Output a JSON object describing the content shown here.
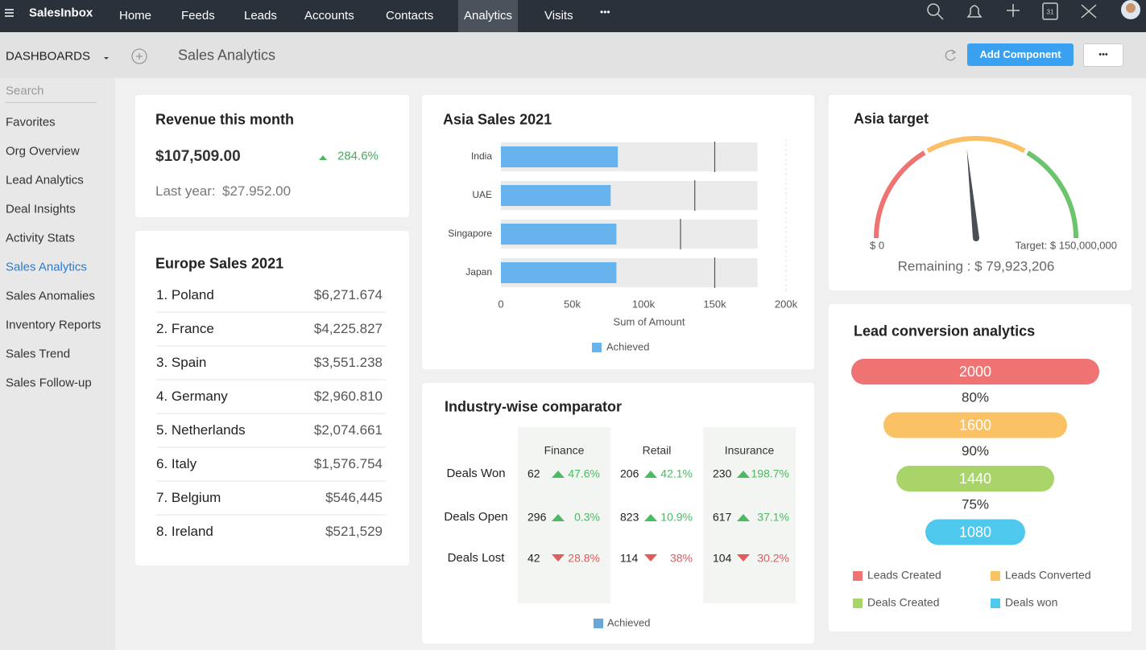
{
  "nav": {
    "brand": "SalesInbox",
    "items": [
      "Home",
      "Feeds",
      "Leads",
      "Accounts",
      "Contacts",
      "Analytics",
      "Visits"
    ],
    "active": 5,
    "more": "•••",
    "calendar_day": "31"
  },
  "toolbar": {
    "title": "DASHBOARDS",
    "page": "Sales Analytics",
    "add": "Add Component",
    "more": "•••"
  },
  "sidebar": {
    "search": "Search",
    "items": [
      "Favorites",
      "Org Overview",
      "Lead Analytics",
      "Deal Insights",
      "Activity Stats",
      "Sales Analytics",
      "Sales Anomalies",
      "Inventory Reports",
      "Sales Trend",
      "Sales Follow-up"
    ],
    "active": 5
  },
  "revenue": {
    "title": "Revenue this month",
    "amount": "$107,509.00",
    "change": "284.6%",
    "last_year_label": "Last year:",
    "last_year": "$27.952.00"
  },
  "europe": {
    "title": "Europe Sales 2021",
    "rows": [
      [
        "1. Poland",
        "$6,271.674"
      ],
      [
        "2. France",
        "$4,225.827"
      ],
      [
        "3. Spain",
        "$3,551.238"
      ],
      [
        "4. Germany",
        "$2,960.810"
      ],
      [
        "5. Netherlands",
        "$2,074.661"
      ],
      [
        "6. Italy",
        "$1,576.754"
      ],
      [
        "7. Belgium",
        "$546,445"
      ],
      [
        "8. Ireland",
        "$521,529"
      ]
    ]
  },
  "industry": {
    "title": "Industry-wise comparator",
    "columns": [
      "Finance",
      "Retail",
      "Insurance"
    ],
    "rows": [
      {
        "label": "Deals Won",
        "cells": [
          {
            "value": "62",
            "change": "47.6%",
            "trend": "up"
          },
          {
            "value": "206",
            "change": "42.1%",
            "trend": "up"
          },
          {
            "value": "230",
            "change": "198.7%",
            "trend": "up"
          }
        ]
      },
      {
        "label": "Deals Open",
        "cells": [
          {
            "value": "296",
            "change": "0.3%",
            "trend": "up"
          },
          {
            "value": "823",
            "change": "10.9%",
            "trend": "up"
          },
          {
            "value": "617",
            "change": "37.1%",
            "trend": "up"
          }
        ]
      },
      {
        "label": "Deals Lost",
        "cells": [
          {
            "value": "42",
            "change": "28.8%",
            "trend": "down"
          },
          {
            "value": "114",
            "change": "38%",
            "trend": "down"
          },
          {
            "value": "104",
            "change": "30.2%",
            "trend": "down"
          }
        ]
      }
    ],
    "legend": "Achieved"
  },
  "chart_data": [
    {
      "type": "bullet",
      "title": "Asia Sales 2021",
      "categories": [
        "India",
        "UAE",
        "Singapore",
        "Japan"
      ],
      "series": [
        {
          "name": "Achieved",
          "color": "#67b3ee",
          "values": [
            82000,
            77000,
            81000,
            81000
          ]
        }
      ],
      "targets": [
        150000,
        136000,
        126000,
        150000
      ],
      "ranges": [
        180000,
        180000,
        180000,
        180000
      ],
      "xlim": [
        0,
        200000
      ],
      "xticks": [
        0,
        {
          "value": 50000,
          "label": "50k"
        },
        {
          "value": 100000,
          "label": "100k"
        },
        {
          "value": 150000,
          "label": "150k"
        },
        {
          "value": 200000,
          "label": "200k"
        }
      ],
      "xlabel": "Sum of Amount"
    },
    {
      "type": "gauge",
      "title": "Asia target",
      "min": 0,
      "max": 150000000,
      "value": 70076794,
      "min_label": "$ 0",
      "max_label": "Target: $ 150,000,000",
      "remaining_label": "Remaining : $ 79,923,206",
      "band_colors": [
        "#ef7373",
        "#fbbf68",
        "#6cc46c"
      ]
    },
    {
      "type": "funnel",
      "title": "Lead conversion analytics",
      "categories": [
        "Leads Created",
        "Leads Converted",
        "Deals Created",
        "Deals won"
      ],
      "values": [
        2000,
        1600,
        1440,
        1080
      ],
      "colors": [
        "#ef7373",
        "#fbc265",
        "#a9d46a",
        "#4fc8ee"
      ],
      "rates": [
        80,
        90,
        75
      ],
      "rate_labels": [
        "80%",
        "90%",
        "75%"
      ]
    }
  ]
}
